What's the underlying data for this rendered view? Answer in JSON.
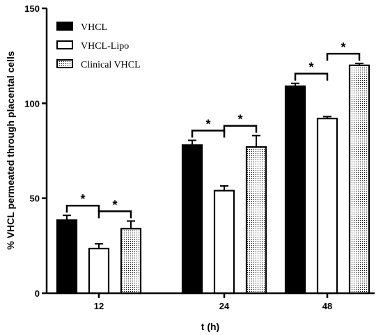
{
  "chart_data": {
    "type": "bar",
    "title": "",
    "xlabel": "t (h)",
    "ylabel": "% VHCL permeated through placental cells",
    "categories": [
      "12",
      "24",
      "48"
    ],
    "ylim": [
      0,
      150
    ],
    "yticks": [
      0,
      50,
      100,
      150
    ],
    "grid": false,
    "legend_position": "top-left",
    "series": [
      {
        "name": "VHCL",
        "fill": "solid-black",
        "values": [
          38.5,
          78,
          109
        ],
        "errors": [
          2.5,
          2.5,
          1.5
        ]
      },
      {
        "name": "VHCL-Lipo",
        "fill": "white",
        "values": [
          23.5,
          54,
          92
        ],
        "errors": [
          2.5,
          2.5,
          1
        ]
      },
      {
        "name": "Clinical VHCL",
        "fill": "dotted",
        "values": [
          34,
          77,
          120
        ],
        "errors": [
          4,
          6,
          1
        ]
      }
    ],
    "significance": [
      {
        "category": 0,
        "from_series": 0,
        "to_series": 1,
        "label": "*"
      },
      {
        "category": 0,
        "from_series": 1,
        "to_series": 2,
        "label": "*"
      },
      {
        "category": 1,
        "from_series": 0,
        "to_series": 1,
        "label": "*"
      },
      {
        "category": 1,
        "from_series": 1,
        "to_series": 2,
        "label": "*"
      },
      {
        "category": 2,
        "from_series": 0,
        "to_series": 1,
        "label": "*"
      },
      {
        "category": 2,
        "from_series": 1,
        "to_series": 2,
        "label": "*"
      }
    ]
  }
}
